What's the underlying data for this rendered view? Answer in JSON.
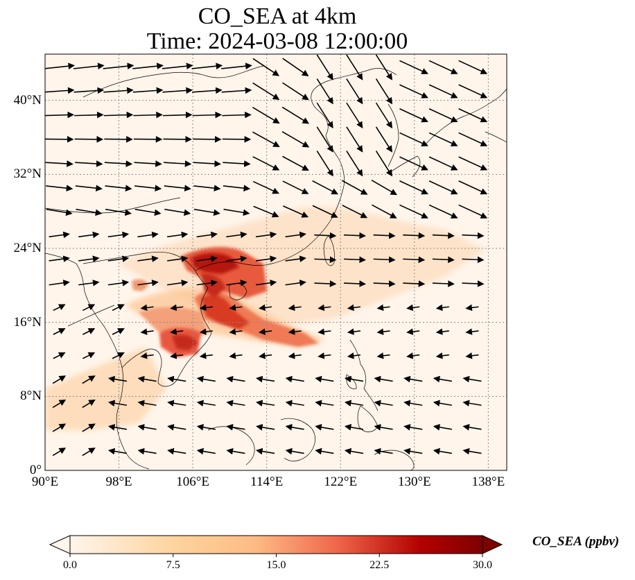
{
  "title": "CO_SEA at 4km",
  "subtitle": "Time: 2024-03-08 12:00:00",
  "map": {
    "extent": {
      "lon_min": 90,
      "lon_max": 140,
      "lat_min": 0,
      "lat_max": 45
    },
    "lat_ticks": [
      {
        "value": 0,
        "label": "0°"
      },
      {
        "value": 8,
        "label": "8°N"
      },
      {
        "value": 16,
        "label": "16°N"
      },
      {
        "value": 24,
        "label": "24°N"
      },
      {
        "value": 32,
        "label": "32°N"
      },
      {
        "value": 40,
        "label": "40°N"
      }
    ],
    "lon_ticks": [
      {
        "value": 90,
        "label": "90°E"
      },
      {
        "value": 98,
        "label": "98°E"
      },
      {
        "value": 106,
        "label": "106°E"
      },
      {
        "value": 114,
        "label": "114°E"
      },
      {
        "value": 122,
        "label": "122°E"
      },
      {
        "value": 130,
        "label": "130°E"
      },
      {
        "value": 138,
        "label": "138°E"
      }
    ],
    "gridlines": true,
    "background_color": "#fff5eb",
    "wind_vectors": true
  },
  "colorbar": {
    "label": "CO_SEA (ppbv)",
    "ticks": [
      "0.0",
      "7.5",
      "15.0",
      "22.5",
      "30.0"
    ],
    "min": 0,
    "max": 30,
    "extend": "both",
    "colormap": "OrRd",
    "colors": [
      "#fff5eb",
      "#fdd49e",
      "#fdbb84",
      "#ef6548",
      "#b30000",
      "#7f0000"
    ]
  }
}
